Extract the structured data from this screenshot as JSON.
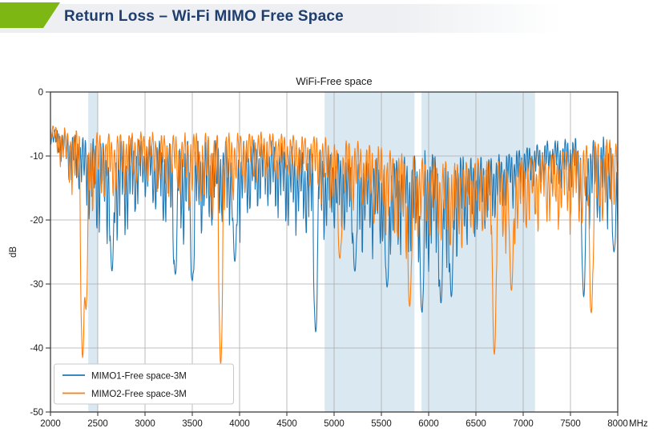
{
  "header": {
    "title": "Return Loss – Wi-Fi MIMO Free Space",
    "title_color": "#1f3d6d",
    "accent_green": "#7db713",
    "bar_bg": "#edeff2"
  },
  "chart_data": {
    "type": "line",
    "title": "WiFi-Free space",
    "x_unit": "MHz",
    "ylabel": "dB",
    "xlim": [
      2000,
      8000
    ],
    "ylim": [
      -50,
      0
    ],
    "x_ticks": [
      2000,
      2500,
      3000,
      3500,
      4000,
      4500,
      5000,
      5500,
      6000,
      6500,
      7000,
      7500,
      8000
    ],
    "y_ticks": [
      0,
      -10,
      -20,
      -30,
      -40,
      -50
    ],
    "grid": true,
    "grid_color": "#ababab",
    "axis_color": "#3c3c3c",
    "text_color": "#1a1a1a",
    "band_color": "#d9e8f1",
    "shaded_bands": [
      [
        2400,
        2500
      ],
      [
        4900,
        5850
      ],
      [
        5925,
        7125
      ]
    ],
    "legend": {
      "position": "lower-left",
      "entries": [
        "MIMO1-Free space-3M",
        "MIMO2-Free space-3M"
      ]
    },
    "sample_step_mhz": 250,
    "series": [
      {
        "name": "MIMO1-Free space-3M",
        "color": "#1f77b4",
        "ripple_mhz": 27,
        "envelope_top": [
          -5.5,
          -6.5,
          -7,
          -7,
          -7,
          -7.5,
          -7,
          -7,
          -7.5,
          -7,
          -8,
          -8.5,
          -9,
          -10,
          -10,
          -9.5,
          -8.5,
          -9,
          -10,
          -9.5,
          -8.5,
          -7.5,
          -7,
          -6.5,
          -6.5
        ],
        "envelope_bottom": [
          -9,
          -17,
          -26,
          -28,
          -20,
          -27,
          -29,
          -25,
          -26,
          -21,
          -24,
          -28,
          -26,
          -28,
          -30,
          -30,
          -33,
          -31,
          -26,
          -22,
          -18,
          -16,
          -18,
          -26,
          -24
        ],
        "notable_minima": [
          [
            2650,
            -28
          ],
          [
            3320,
            -28.5
          ],
          [
            3500,
            -29.5
          ],
          [
            3950,
            -26.5
          ],
          [
            4805,
            -37.5
          ],
          [
            5220,
            -28
          ],
          [
            5560,
            -30.5
          ],
          [
            5930,
            -34.5
          ],
          [
            6130,
            -33
          ],
          [
            6240,
            -32
          ],
          [
            7640,
            -32
          ],
          [
            7960,
            -25
          ]
        ]
      },
      {
        "name": "MIMO2-Free space-3M",
        "color": "#ff7f0e",
        "ripple_mhz": 31,
        "envelope_top": [
          -5,
          -5.5,
          -6,
          -6,
          -6,
          -6.5,
          -6,
          -6,
          -6,
          -6,
          -6.5,
          -6.5,
          -7,
          -7.5,
          -8,
          -9,
          -10,
          -10.5,
          -10,
          -10.5,
          -10,
          -9,
          -8,
          -7,
          -6.5
        ],
        "envelope_bottom": [
          -8,
          -20,
          -22,
          -18,
          -16,
          -18,
          -20,
          -24,
          -18,
          -16,
          -15,
          -18,
          -22,
          -21,
          -25,
          -30,
          -26,
          -29,
          -25,
          -30,
          -26,
          -24,
          -25,
          -28,
          -20
        ],
        "notable_minima": [
          [
            2340,
            -41.5
          ],
          [
            2375,
            -34
          ],
          [
            3800,
            -42.5
          ],
          [
            5060,
            -26
          ],
          [
            5800,
            -33.5
          ],
          [
            6695,
            -41
          ],
          [
            6875,
            -31
          ],
          [
            7720,
            -34.5
          ]
        ]
      }
    ]
  }
}
